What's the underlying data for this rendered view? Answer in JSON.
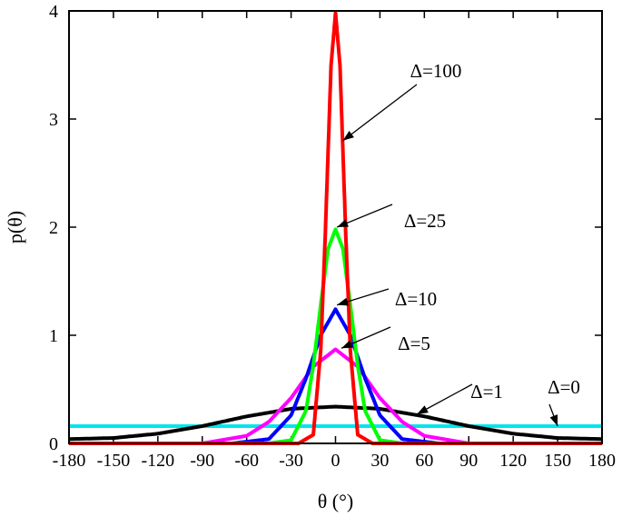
{
  "chart_data": {
    "type": "line",
    "xlabel": "θ (°)",
    "ylabel": "p(θ)",
    "xlim": [
      -180,
      180
    ],
    "ylim": [
      0,
      4
    ],
    "xticks": [
      -180,
      -150,
      -120,
      -90,
      -60,
      -30,
      0,
      30,
      60,
      90,
      120,
      150,
      180
    ],
    "yticks": [
      0,
      1,
      2,
      3,
      4
    ],
    "grid": false,
    "legend": "none",
    "series": [
      {
        "name": "Δ=0",
        "color": "#00e5ee",
        "x": [
          -180,
          180
        ],
        "y": [
          0.16,
          0.16
        ]
      },
      {
        "name": "Δ=1",
        "color": "#000000",
        "x": [
          -180,
          -150,
          -120,
          -90,
          -60,
          -30,
          0,
          30,
          60,
          90,
          120,
          150,
          180
        ],
        "y": [
          0.04,
          0.05,
          0.09,
          0.16,
          0.25,
          0.32,
          0.34,
          0.32,
          0.25,
          0.16,
          0.09,
          0.05,
          0.04
        ]
      },
      {
        "name": "Δ=5",
        "color": "#ff00ff",
        "x": [
          -90,
          -60,
          -45,
          -30,
          -15,
          0,
          15,
          30,
          45,
          60,
          90
        ],
        "y": [
          0.0,
          0.07,
          0.2,
          0.42,
          0.71,
          0.87,
          0.71,
          0.42,
          0.2,
          0.07,
          0.0
        ]
      },
      {
        "name": "Δ=10",
        "color": "#0000ff",
        "x": [
          -70,
          -45,
          -30,
          -20,
          -10,
          0,
          10,
          20,
          30,
          45,
          70
        ],
        "y": [
          0.0,
          0.04,
          0.26,
          0.6,
          1.0,
          1.24,
          1.0,
          0.6,
          0.26,
          0.04,
          0.0
        ]
      },
      {
        "name": "Δ=25",
        "color": "#00ff00",
        "x": [
          -45,
          -30,
          -20,
          -15,
          -10,
          -5,
          0,
          5,
          10,
          15,
          20,
          30,
          45
        ],
        "y": [
          0.0,
          0.03,
          0.3,
          0.72,
          1.28,
          1.8,
          1.98,
          1.8,
          1.28,
          0.72,
          0.3,
          0.03,
          0.0
        ]
      },
      {
        "name": "Δ=100",
        "color": "#ff0000",
        "x": [
          -25,
          -15,
          -10,
          -7,
          -5,
          -3,
          0,
          3,
          5,
          7,
          10,
          15,
          25
        ],
        "y": [
          0.0,
          0.08,
          0.86,
          1.9,
          2.7,
          3.5,
          3.98,
          3.5,
          2.7,
          1.9,
          0.86,
          0.08,
          0.0
        ]
      }
    ],
    "annotations": [
      {
        "text": "Δ=100",
        "series": "Δ=100",
        "at": [
          5,
          2.8
        ]
      },
      {
        "text": "Δ=25",
        "series": "Δ=25",
        "at": [
          1,
          2.0
        ]
      },
      {
        "text": "Δ=10",
        "series": "Δ=10",
        "at": [
          1,
          1.28
        ]
      },
      {
        "text": "Δ=5",
        "series": "Δ=5",
        "at": [
          4,
          0.88
        ]
      },
      {
        "text": "Δ=1",
        "series": "Δ=1",
        "at": [
          55,
          0.27
        ]
      },
      {
        "text": "Δ=0",
        "series": "Δ=0",
        "at": [
          150,
          0.16
        ]
      }
    ]
  }
}
